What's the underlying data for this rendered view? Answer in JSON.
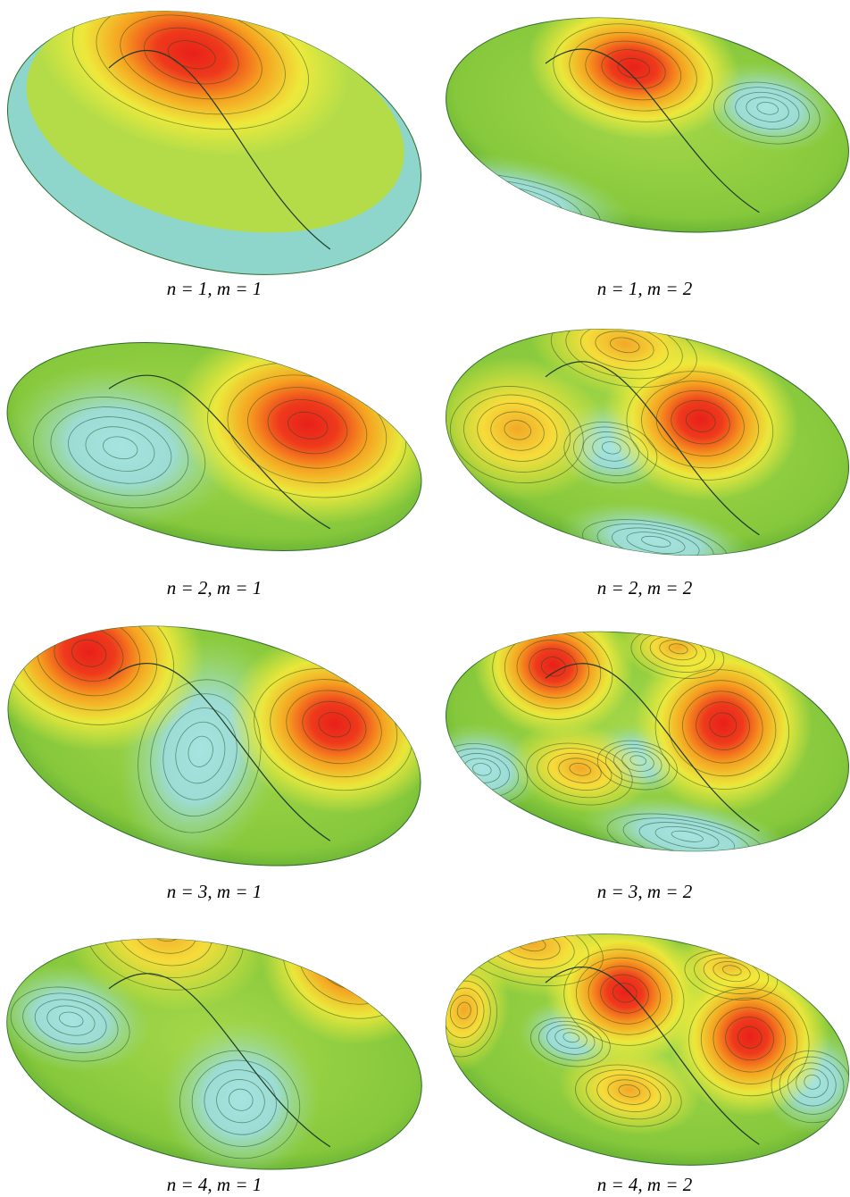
{
  "figure": {
    "panels": [
      {
        "caption": "n = 1, m = 1"
      },
      {
        "caption": "n = 1, m = 2"
      },
      {
        "caption": "n = 2, m = 1"
      },
      {
        "caption": "n = 2, m = 2"
      },
      {
        "caption": "n = 3, m = 1"
      },
      {
        "caption": "n = 3, m = 2"
      },
      {
        "caption": "n = 4, m = 1"
      },
      {
        "caption": "n = 4, m = 2"
      }
    ]
  }
}
